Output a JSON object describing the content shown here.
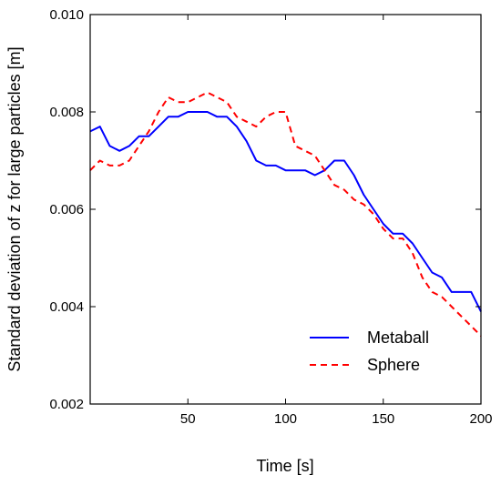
{
  "chart_data": {
    "type": "line",
    "xlabel": "Time [s]",
    "ylabel": "Standard deviation of z for large particles [m]",
    "xlim": [
      0,
      200
    ],
    "ylim": [
      0.002,
      0.01
    ],
    "xticks": [
      50,
      100,
      150,
      200
    ],
    "xtick_labels": [
      "50",
      "100",
      "150",
      "200"
    ],
    "yticks": [
      0.002,
      0.004,
      0.006,
      0.008,
      0.01
    ],
    "ytick_labels": [
      "0.002",
      "0.004",
      "0.006",
      "0.008",
      "0.010"
    ],
    "grid": false,
    "legend_position": "bottom-right",
    "x": [
      0,
      5,
      10,
      15,
      20,
      25,
      30,
      35,
      40,
      45,
      50,
      55,
      60,
      65,
      70,
      75,
      80,
      85,
      90,
      95,
      100,
      105,
      110,
      115,
      120,
      125,
      130,
      135,
      140,
      145,
      150,
      155,
      160,
      165,
      170,
      175,
      180,
      185,
      190,
      195,
      200
    ],
    "series": [
      {
        "name": "Metaball",
        "color": "#0000ff",
        "dash": "solid",
        "values": [
          0.0076,
          0.0077,
          0.0073,
          0.0072,
          0.0073,
          0.0075,
          0.0075,
          0.0077,
          0.0079,
          0.0079,
          0.008,
          0.008,
          0.008,
          0.0079,
          0.0079,
          0.0077,
          0.0074,
          0.007,
          0.0069,
          0.0069,
          0.0068,
          0.0068,
          0.0068,
          0.0067,
          0.0068,
          0.007,
          0.007,
          0.0067,
          0.0063,
          0.006,
          0.0057,
          0.0055,
          0.0055,
          0.0053,
          0.005,
          0.0047,
          0.0046,
          0.0043,
          0.0043,
          0.0043,
          0.0039
        ]
      },
      {
        "name": "Sphere",
        "color": "#ff0000",
        "dash": "dashed",
        "values": [
          0.0068,
          0.007,
          0.0069,
          0.0069,
          0.007,
          0.0073,
          0.0076,
          0.008,
          0.0083,
          0.0082,
          0.0082,
          0.0083,
          0.0084,
          0.0083,
          0.0082,
          0.0079,
          0.0078,
          0.0077,
          0.0079,
          0.008,
          0.008,
          0.0073,
          0.0072,
          0.0071,
          0.0068,
          0.0065,
          0.0064,
          0.0062,
          0.0061,
          0.0059,
          0.0056,
          0.0054,
          0.0054,
          0.0051,
          0.0046,
          0.0043,
          0.0042,
          0.004,
          0.0038,
          0.0036,
          0.0034
        ]
      }
    ]
  }
}
